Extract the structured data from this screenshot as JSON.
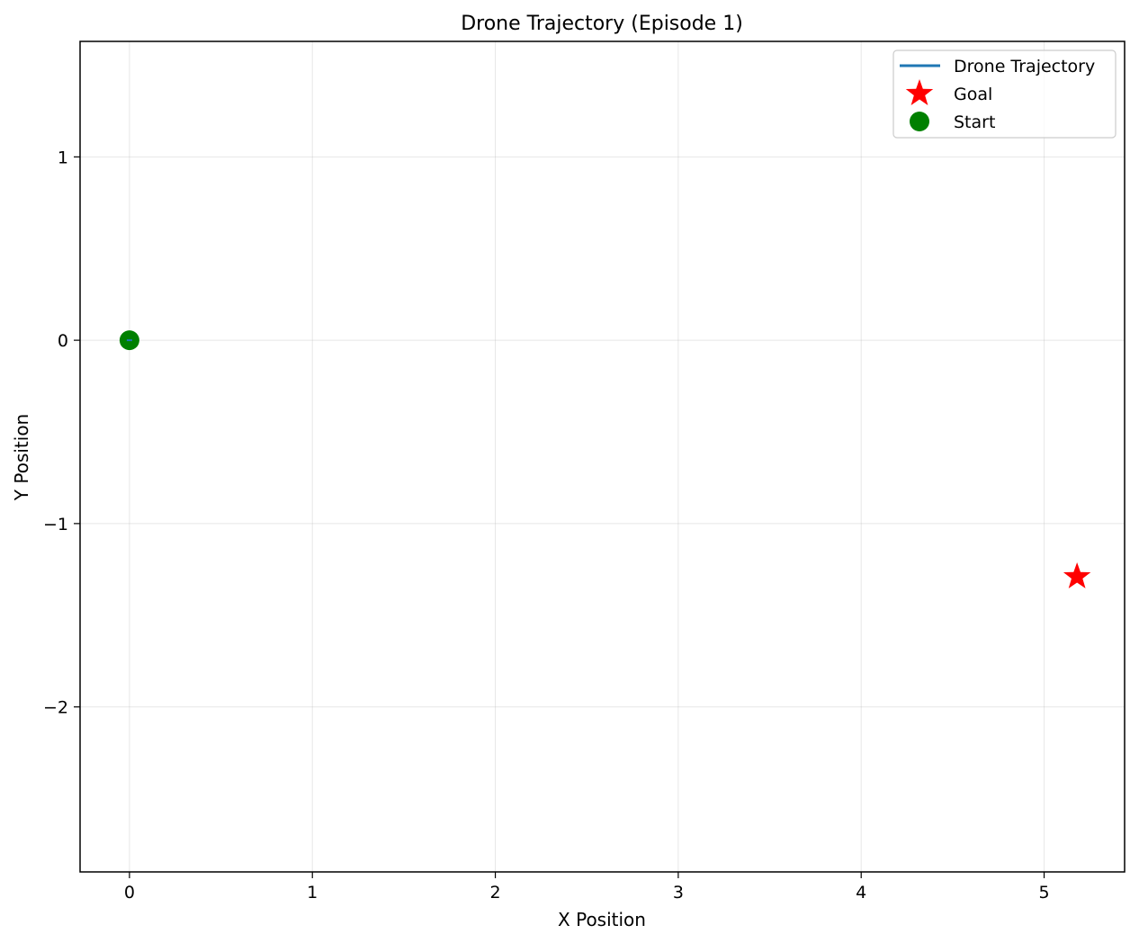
{
  "chart_data": {
    "type": "scatter",
    "title": "Drone Trajectory (Episode 1)",
    "xlabel": "X Position",
    "ylabel": "Y Position",
    "xlim": [
      -0.27,
      5.44
    ],
    "ylim": [
      -2.9,
      1.63
    ],
    "grid": true,
    "legend_position": "top-right",
    "x_ticks": [
      0,
      1,
      2,
      3,
      4,
      5
    ],
    "x_tick_labels": [
      "0",
      "1",
      "2",
      "3",
      "4",
      "5"
    ],
    "y_ticks": [
      1,
      0,
      -1,
      -2
    ],
    "y_tick_labels": [
      "1",
      "0",
      "−1",
      "−2"
    ],
    "series": [
      {
        "name": "Drone Trajectory",
        "kind": "line",
        "color": "#1f77b4",
        "points": [
          [
            0,
            0
          ],
          [
            0.005,
            0.0
          ]
        ]
      },
      {
        "name": "Goal",
        "kind": "star",
        "color": "#ff0000",
        "points": [
          [
            5.18,
            -1.29
          ]
        ]
      },
      {
        "name": "Start",
        "kind": "circle",
        "color": "#008000",
        "points": [
          [
            0,
            0
          ]
        ]
      }
    ]
  }
}
